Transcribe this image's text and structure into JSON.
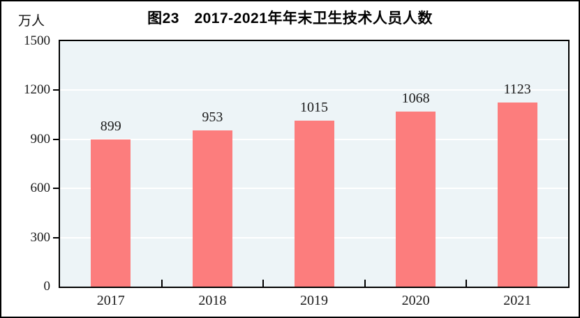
{
  "title": "图23　2017-2021年年末卫生技术人员人数",
  "unit_label": "万人",
  "colors": {
    "bar": "#fc7d7d",
    "plot_background": "#edf4f7",
    "gridline": "#ffffff",
    "axis": "#000000",
    "text": "#1a1a1a"
  },
  "chart_data": {
    "type": "bar",
    "title": "图23　2017-2021年年末卫生技术人员人数",
    "categories": [
      "2017",
      "2018",
      "2019",
      "2020",
      "2021"
    ],
    "values": [
      899,
      953,
      1015,
      1068,
      1123
    ],
    "xlabel": "",
    "ylabel": "万人",
    "ylim": [
      0,
      1500
    ],
    "yticks": [
      0,
      300,
      600,
      900,
      1200,
      1500
    ],
    "grid": true,
    "gridline_levels": [
      300,
      600,
      900,
      1200
    ],
    "legend": false,
    "data_labels": true
  }
}
